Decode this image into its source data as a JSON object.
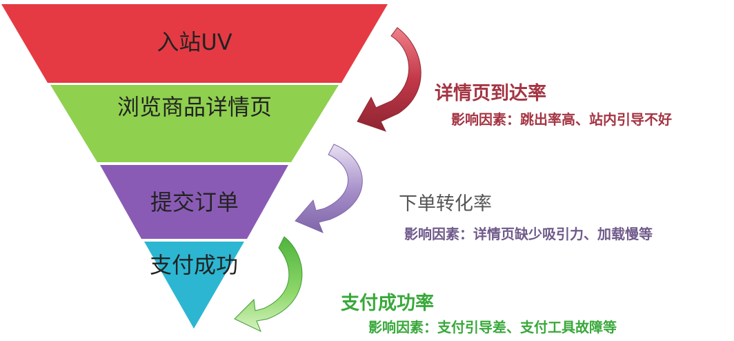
{
  "funnel": {
    "stages": [
      {
        "label": "入站UV",
        "color": "#e53a43"
      },
      {
        "label": "浏览商品详情页",
        "color": "#8fd04e"
      },
      {
        "label": "提交订单",
        "color": "#8a5bb5"
      },
      {
        "label": "支付成功",
        "color": "#2cb6d2"
      }
    ]
  },
  "conversions": [
    {
      "title": "详情页到达率",
      "factors": "影响因素：跳出率高、站内引导不好",
      "color": "#a43442"
    },
    {
      "title": "下单转化率",
      "factors": "影响因素：详情页缺少吸引力、加载慢等",
      "color": "#6f5a8a"
    },
    {
      "title": "支付成功率",
      "factors": "影响因素：支付引导差、支付工具故障等",
      "color": "#38a83a"
    }
  ]
}
